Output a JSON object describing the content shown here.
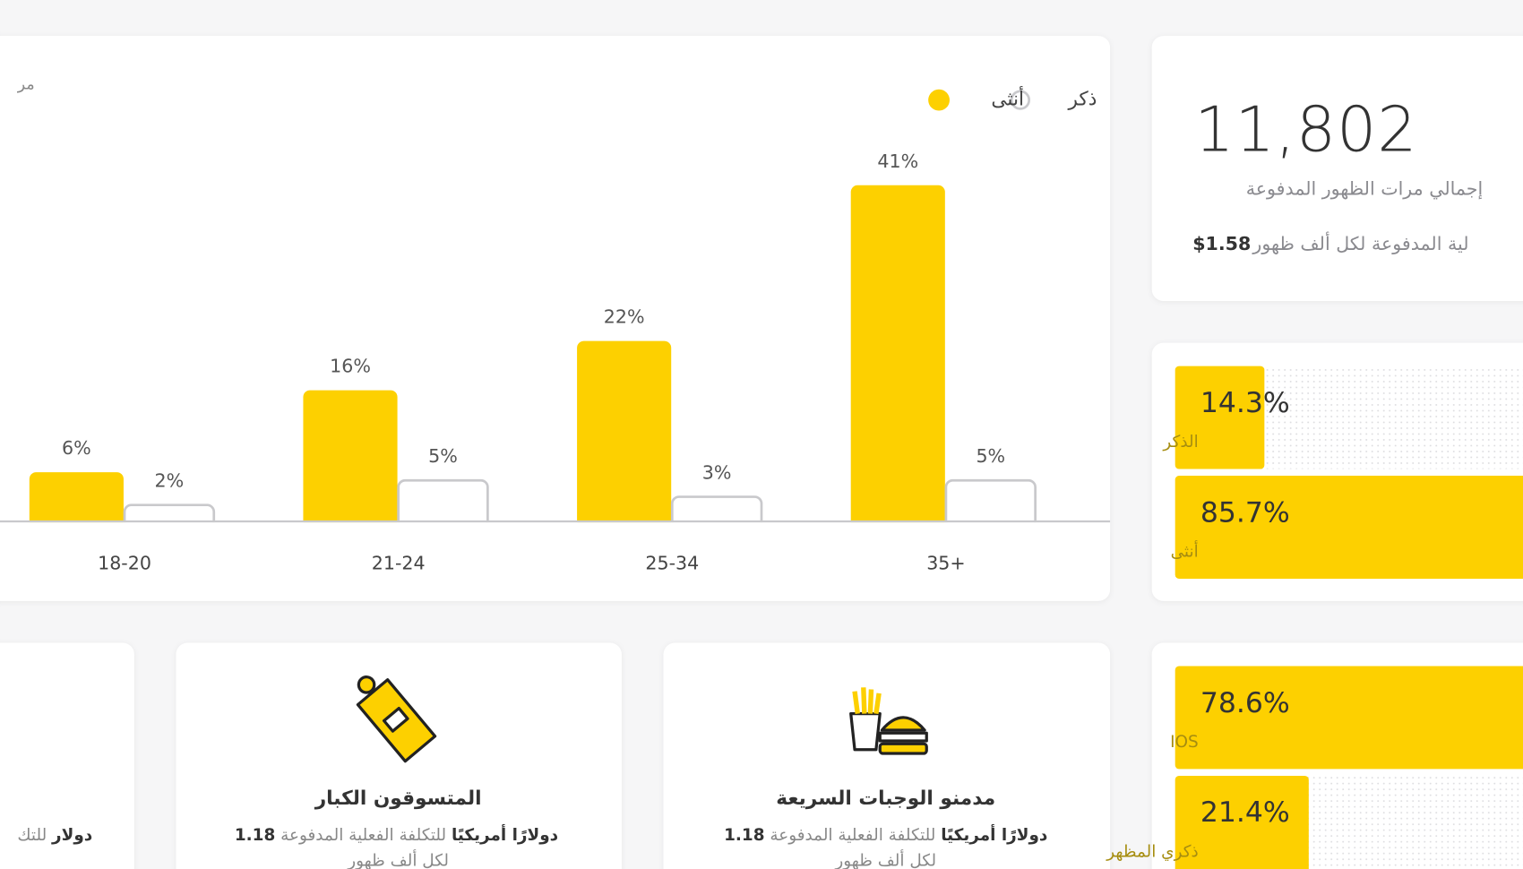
{
  "age_chart": {
    "type": "bar",
    "corner_text": "مر",
    "categories": [
      "18-20",
      "21-24",
      "25-34",
      "35+"
    ],
    "series": [
      {
        "name": "أنثى",
        "color": "#fdd000",
        "values": [
          6,
          16,
          22,
          41
        ],
        "value_labels": [
          "6%",
          "16%",
          "22%",
          "41%"
        ]
      },
      {
        "name": "ذكر",
        "color": "#ffffff",
        "stroke": "#c9c9cc",
        "values": [
          2,
          5,
          3,
          5
        ],
        "value_labels": [
          "2%",
          "5%",
          "3%",
          "5%"
        ]
      }
    ],
    "ylim": [
      0,
      45
    ]
  },
  "stats": {
    "impressions": "11,802",
    "impressions_label": "إجمالي مرات الظهور المدفوعة",
    "cpm_value": "$1.58",
    "cpm_label": "لية المدفوعة لكل ألف ظهور"
  },
  "gender_split": {
    "type": "bar",
    "xlim": [
      0,
      100
    ],
    "color": "#fdd000",
    "items": [
      {
        "label": "الذكر",
        "value": 14.3,
        "value_label": "14.3%"
      },
      {
        "label": "أنثى",
        "value": 85.7,
        "value_label": "85.7%"
      }
    ]
  },
  "platform_split": {
    "type": "bar",
    "xlim": [
      0,
      100
    ],
    "color": "#fdd000",
    "items": [
      {
        "label": "IOS",
        "value": 78.6,
        "value_label": "78.6%"
      },
      {
        "label": "ذكري المظهر",
        "value": 21.4,
        "value_label": "21.4%"
      }
    ]
  },
  "cards": [
    {
      "title": "مدمنو الوجبات السريعة",
      "cost_lead": "دولارًا أمريكيًا",
      "cost_text": "للتكلفة الفعلية المدفوعة",
      "cost_value": "1.18",
      "cost_tail": "لكل ألف ظهور"
    },
    {
      "title": "المتسوقون الكبار",
      "cost_lead": "دولارًا أمريكيًا",
      "cost_text": "للتكلفة الفعلية المدفوعة",
      "cost_value": "1.18",
      "cost_tail": "لكل ألف ظهور"
    },
    {
      "cost_lead": "دولار",
      "cost_text": "للتك"
    }
  ]
}
